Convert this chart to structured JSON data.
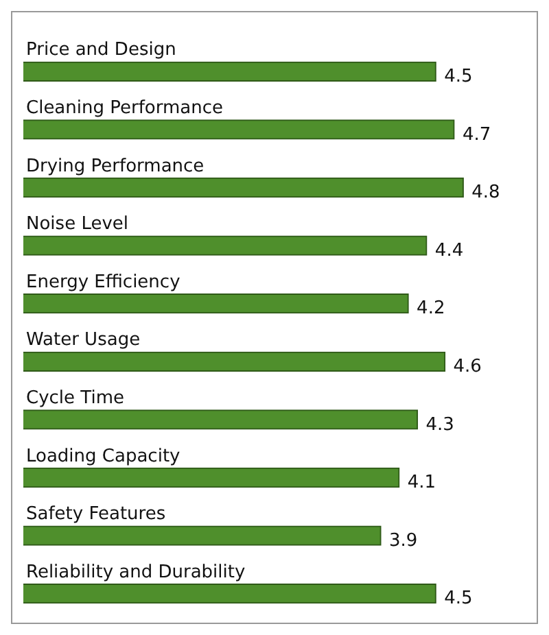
{
  "chart_data": {
    "type": "bar",
    "orientation": "horizontal",
    "categories": [
      "Price and Design",
      "Cleaning Performance",
      "Drying Performance",
      "Noise Level",
      "Energy Efficiency",
      "Water Usage",
      "Cycle Time",
      "Loading Capacity",
      "Safety Features",
      "Reliability and Durability"
    ],
    "values": [
      4.5,
      4.7,
      4.8,
      4.4,
      4.2,
      4.6,
      4.3,
      4.1,
      3.9,
      4.5
    ],
    "color": "#4f8f2c",
    "data_labels": true
  }
}
